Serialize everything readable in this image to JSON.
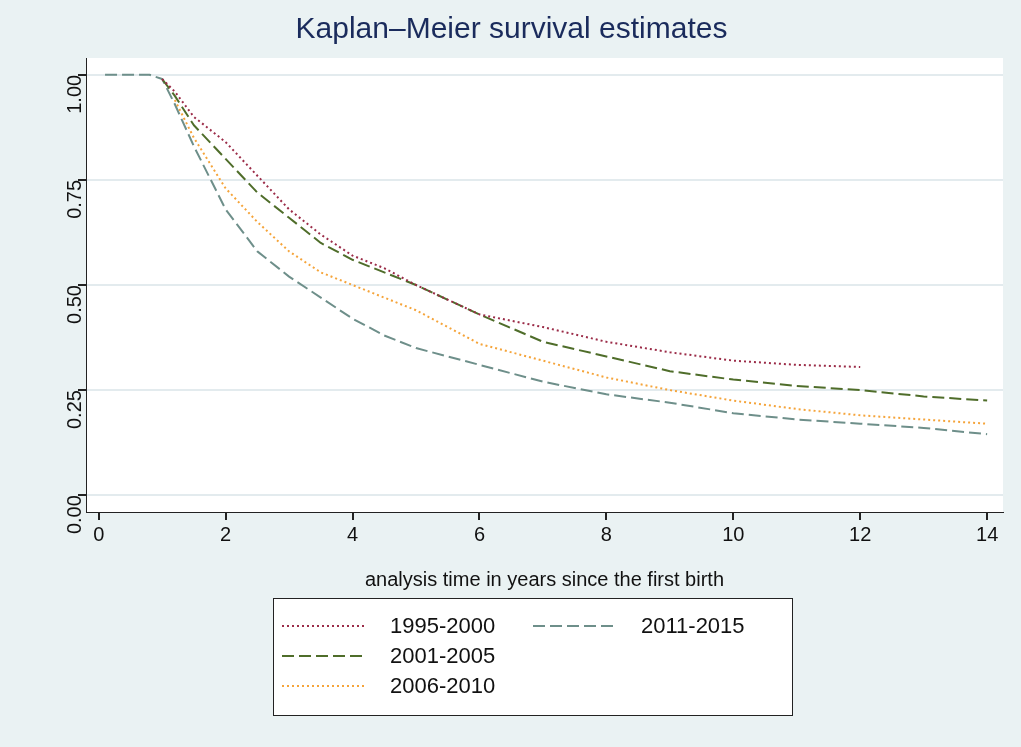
{
  "chart_data": {
    "type": "line",
    "title": "Kaplan–Meier survival estimates",
    "xlabel": "analysis time in years since the first birth",
    "xlim": [
      -0.2,
      14.25
    ],
    "xticks": [
      0,
      2,
      4,
      6,
      8,
      10,
      12,
      14
    ],
    "ylim": [
      -0.04,
      1.04
    ],
    "yticks": [
      {
        "value": 0,
        "label": "0.00"
      },
      {
        "value": 0.25,
        "label": "0.25"
      },
      {
        "value": 0.5,
        "label": "0.50"
      },
      {
        "value": 0.75,
        "label": "0.75"
      },
      {
        "value": 1,
        "label": "1.00"
      }
    ],
    "grid": "y",
    "legend": "bottom",
    "marker": "none",
    "series": [
      {
        "name": "1995-2000",
        "color": "#9b2c48",
        "line_style": "dotted",
        "x": [
          1.0,
          1.2,
          1.5,
          2,
          2.5,
          3,
          3.5,
          4,
          4.5,
          5,
          6,
          7,
          8,
          9,
          10,
          11,
          12
        ],
        "values": [
          0.99,
          0.96,
          0.9,
          0.84,
          0.76,
          0.68,
          0.62,
          0.57,
          0.54,
          0.5,
          0.43,
          0.4,
          0.365,
          0.34,
          0.32,
          0.31,
          0.305
        ]
      },
      {
        "name": "2001-2005",
        "color": "#4f6d2a",
        "line_style": "dashed",
        "x": [
          1.0,
          1.2,
          1.5,
          2,
          2.5,
          3,
          3.5,
          4,
          4.5,
          5,
          6,
          7,
          8,
          9,
          10,
          11,
          12,
          13,
          14
        ],
        "values": [
          0.99,
          0.95,
          0.88,
          0.8,
          0.72,
          0.66,
          0.6,
          0.56,
          0.53,
          0.5,
          0.43,
          0.365,
          0.33,
          0.295,
          0.275,
          0.26,
          0.25,
          0.235,
          0.225
        ]
      },
      {
        "name": "2006-2010",
        "color": "#f5a43a",
        "line_style": "dotted",
        "x": [
          1.2,
          1.5,
          2,
          2.5,
          3,
          3.5,
          4,
          4.5,
          5,
          6,
          7,
          8,
          9,
          10,
          11,
          12,
          13,
          14
        ],
        "values": [
          0.94,
          0.85,
          0.73,
          0.65,
          0.58,
          0.53,
          0.5,
          0.47,
          0.44,
          0.36,
          0.32,
          0.28,
          0.25,
          0.225,
          0.205,
          0.19,
          0.18,
          0.17
        ]
      },
      {
        "name": "2011-2015",
        "color": "#6e8f8a",
        "line_style": "dashed",
        "x": [
          0.1,
          0.8,
          1.0,
          1.2,
          1.5,
          2,
          2.5,
          3,
          3.5,
          4,
          4.5,
          5,
          6,
          7,
          8,
          9,
          10,
          11,
          12,
          13,
          14
        ],
        "values": [
          1,
          1,
          0.99,
          0.93,
          0.83,
          0.68,
          0.58,
          0.52,
          0.47,
          0.42,
          0.38,
          0.35,
          0.31,
          0.27,
          0.24,
          0.22,
          0.195,
          0.18,
          0.17,
          0.16,
          0.145
        ]
      }
    ]
  }
}
